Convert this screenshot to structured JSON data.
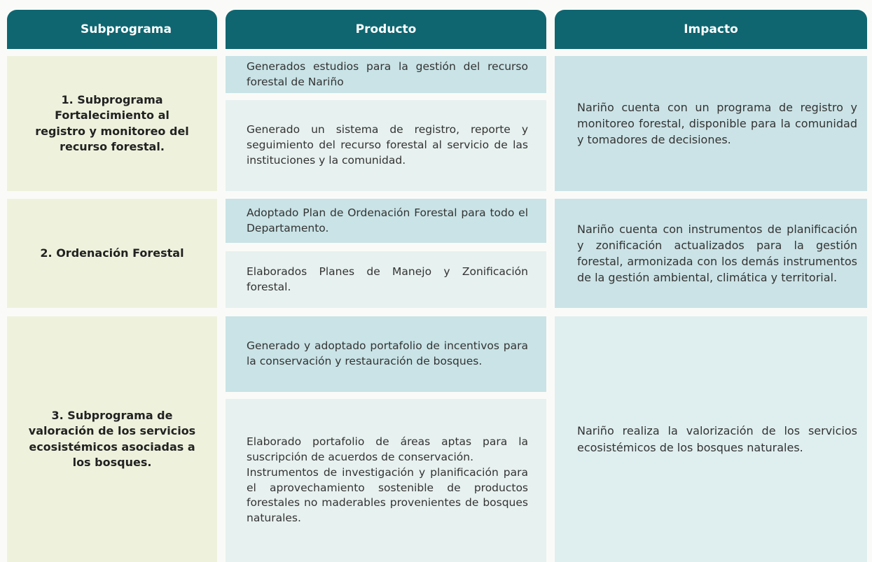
{
  "table": {
    "headers": [
      "Subprograma",
      "Producto",
      "Impacto"
    ],
    "rows": [
      {
        "subprogram": "1. Subprograma Fortalecimiento al registro y monitoreo del recurso forestal.",
        "products": [
          [
            "Generados estudios para la gestión del recurso forestal de Nariño"
          ],
          [
            "Generado un sistema de registro, reporte y seguimiento del recurso forestal al servicio de las instituciones y la comunidad."
          ]
        ],
        "impact": "Nariño cuenta con un programa de registro y monitoreo forestal, disponible para la comunidad y tomadores de decisiones."
      },
      {
        "subprogram": "2. Ordenación Forestal",
        "products": [
          [
            "Adoptado Plan de Ordenación Forestal para todo el Departamento."
          ],
          [
            "Elaborados Planes de Manejo y Zonificación forestal."
          ]
        ],
        "impact": "Nariño cuenta con instrumentos de planificación y zonificación actualizados para la gestión forestal, armonizada con los demás instrumentos de la gestión ambiental, climática y territorial."
      },
      {
        "subprogram": "3. Subprograma de valoración de los servicios ecosistémicos asociadas a los bosques.",
        "products": [
          [
            "Generado y adoptado portafolio de incentivos para la conservación y restauración de bosques."
          ],
          [
            "Elaborado portafolio de áreas aptas para la suscripción de acuerdos de conservación.",
            "Instrumentos de investigación y planificación para el aprovechamiento sostenible de productos forestales no maderables provenientes de bosques naturales."
          ]
        ],
        "impact": "Nariño realiza la valorización de los servicios ecosistémicos de los bosques naturales."
      }
    ]
  }
}
